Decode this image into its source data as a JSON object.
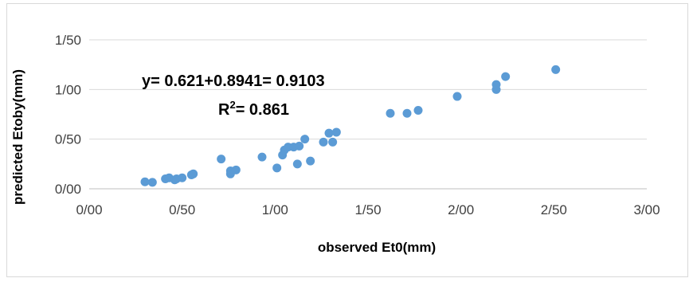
{
  "chart_data": {
    "type": "scatter",
    "xlabel": "observed Et0(mm)",
    "ylabel": "predicted Etoby(mm)",
    "xlim": [
      0,
      3
    ],
    "ylim": [
      0,
      1.5
    ],
    "x_ticks": [
      0,
      0.5,
      1,
      1.5,
      2,
      2.5,
      3
    ],
    "y_ticks": [
      0,
      0.5,
      1,
      1.5
    ],
    "x_tick_labels": [
      "0/00",
      "0/50",
      "1/00",
      "1/50",
      "2/00",
      "2/50",
      "3/00"
    ],
    "y_tick_labels": [
      "0/00",
      "0/50",
      "1/00",
      "1/50"
    ],
    "grid": "horizontal",
    "legend": "none",
    "marker_color": "#5B9BD5",
    "annotations": {
      "equation": "y= 0.621+0.8941= 0.9103",
      "r2_prefix": "R",
      "r2_sup": "2",
      "r2_value": "= 0.861"
    },
    "series": [
      {
        "points": [
          [
            0.3,
            0.07
          ],
          [
            0.34,
            0.065
          ],
          [
            0.41,
            0.1
          ],
          [
            0.43,
            0.11
          ],
          [
            0.46,
            0.09
          ],
          [
            0.47,
            0.1
          ],
          [
            0.5,
            0.11
          ],
          [
            0.55,
            0.14
          ],
          [
            0.56,
            0.15
          ],
          [
            0.71,
            0.3
          ],
          [
            0.76,
            0.18
          ],
          [
            0.76,
            0.15
          ],
          [
            0.79,
            0.19
          ],
          [
            0.93,
            0.32
          ],
          [
            1.01,
            0.21
          ],
          [
            1.04,
            0.34
          ],
          [
            1.05,
            0.39
          ],
          [
            1.07,
            0.42
          ],
          [
            1.1,
            0.42
          ],
          [
            1.12,
            0.25
          ],
          [
            1.13,
            0.43
          ],
          [
            1.16,
            0.5
          ],
          [
            1.19,
            0.28
          ],
          [
            1.26,
            0.47
          ],
          [
            1.29,
            0.56
          ],
          [
            1.31,
            0.47
          ],
          [
            1.33,
            0.57
          ],
          [
            1.62,
            0.76
          ],
          [
            1.71,
            0.76
          ],
          [
            1.77,
            0.79
          ],
          [
            1.98,
            0.93
          ],
          [
            2.19,
            1.0
          ],
          [
            2.19,
            1.05
          ],
          [
            2.24,
            1.13
          ],
          [
            2.51,
            1.2
          ]
        ]
      }
    ]
  }
}
